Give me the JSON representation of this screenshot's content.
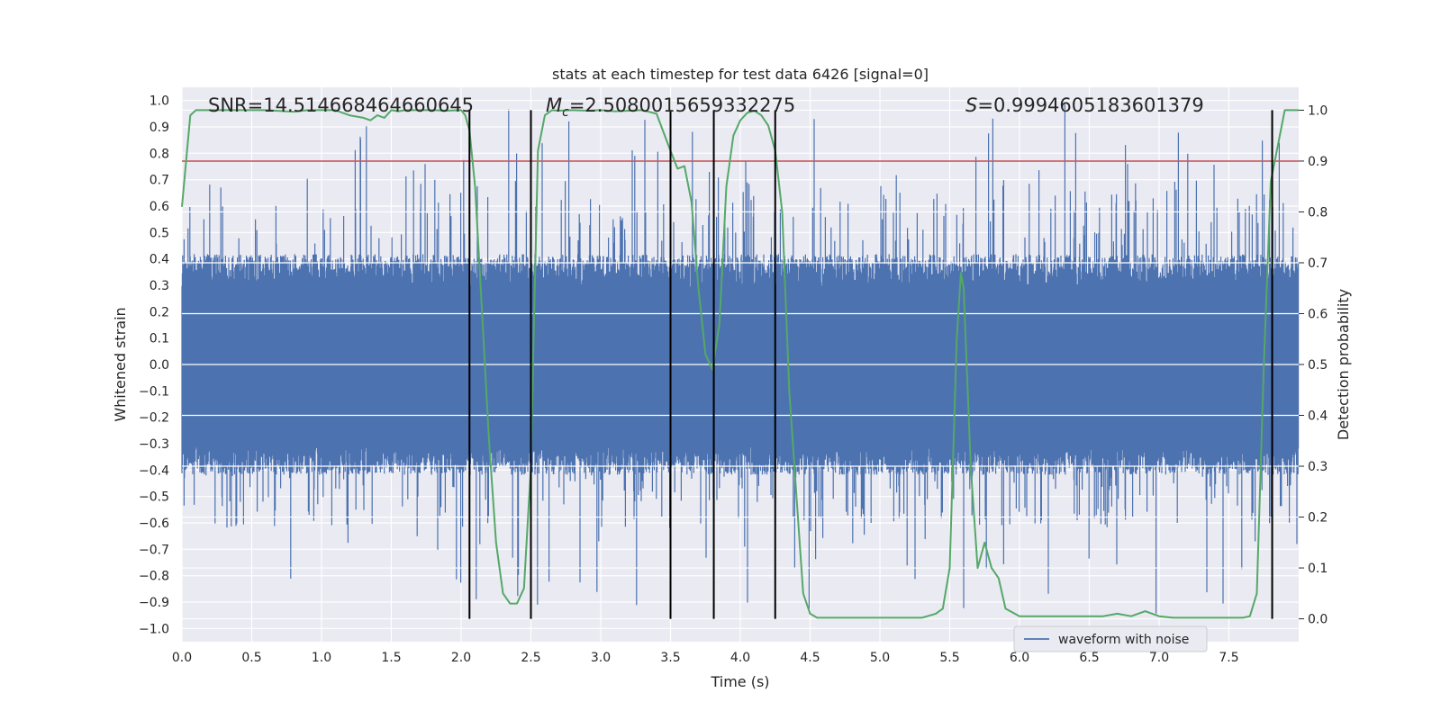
{
  "chart_data": {
    "type": "line",
    "title": "stats at each timestep for test data 6426 [signal=0]",
    "xlabel": "Time (s)",
    "ylabel": "Whitened strain",
    "ylabel_right": "Detection probability",
    "xlim": [
      0.0,
      8.0
    ],
    "ylim": [
      -1.05,
      1.05
    ],
    "ylim_right": [
      -0.045,
      1.045
    ],
    "x_ticks": [
      0.0,
      0.5,
      1.0,
      1.5,
      2.0,
      2.5,
      3.0,
      3.5,
      4.0,
      4.5,
      5.0,
      5.5,
      6.0,
      6.5,
      7.0,
      7.5
    ],
    "x_tick_labels": [
      "0.0",
      "0.5",
      "1.0",
      "1.5",
      "2.0",
      "2.5",
      "3.0",
      "3.5",
      "4.0",
      "4.5",
      "5.0",
      "5.5",
      "6.0",
      "6.5",
      "7.0",
      "7.5"
    ],
    "y_ticks": [
      -1.0,
      -0.9,
      -0.8,
      -0.7,
      -0.6,
      -0.5,
      -0.4,
      -0.3,
      -0.2,
      -0.1,
      0.0,
      0.1,
      0.2,
      0.3,
      0.4,
      0.5,
      0.6,
      0.7,
      0.8,
      0.9,
      1.0
    ],
    "y_tick_labels": [
      "−1.0",
      "−0.9",
      "−0.8",
      "−0.7",
      "−0.6",
      "−0.5",
      "−0.4",
      "−0.3",
      "−0.2",
      "−0.1",
      "0.0",
      "0.1",
      "0.2",
      "0.3",
      "0.4",
      "0.5",
      "0.6",
      "0.7",
      "0.8",
      "0.9",
      "1.0"
    ],
    "y_ticks_right": [
      0.0,
      0.1,
      0.2,
      0.3,
      0.4,
      0.5,
      0.6,
      0.7,
      0.8,
      0.9,
      1.0
    ],
    "y_tick_labels_right": [
      "0.0",
      "0.1",
      "0.2",
      "0.3",
      "0.4",
      "0.5",
      "0.6",
      "0.7",
      "0.8",
      "0.9",
      "1.0"
    ],
    "annotations": {
      "snr": "SNR=14.514668464660645",
      "mc_symbol": "M",
      "mc_sub": "c",
      "mc_value": "=2.5080015659332275",
      "s_symbol": "S",
      "s_value": "=0.9994605183601379"
    },
    "threshold_right": 0.9,
    "vertical_lines_x": [
      2.06,
      2.5,
      3.5,
      3.81,
      4.25,
      7.81
    ],
    "legend": {
      "label": "waveform with noise",
      "location": "lower-right"
    },
    "series": [
      {
        "name": "waveform with noise",
        "axis": "left",
        "noise_core": 0.38,
        "peak_max": 1.0,
        "trough_min": -0.95
      },
      {
        "name": "detection probability",
        "axis": "right",
        "x": [
          0.0,
          0.06,
          0.1,
          0.2,
          0.4,
          0.6,
          0.8,
          0.9,
          1.0,
          1.1,
          1.2,
          1.3,
          1.35,
          1.4,
          1.45,
          1.5,
          1.55,
          1.6,
          1.7,
          1.8,
          1.9,
          2.0,
          2.03,
          2.06,
          2.1,
          2.15,
          2.2,
          2.25,
          2.3,
          2.35,
          2.4,
          2.45,
          2.5,
          2.52,
          2.55,
          2.6,
          2.65,
          2.7,
          2.8,
          2.9,
          3.0,
          3.1,
          3.2,
          3.3,
          3.4,
          3.5,
          3.55,
          3.6,
          3.65,
          3.7,
          3.75,
          3.8,
          3.85,
          3.9,
          3.95,
          4.0,
          4.05,
          4.1,
          4.15,
          4.2,
          4.25,
          4.3,
          4.35,
          4.4,
          4.45,
          4.5,
          4.55,
          4.6,
          4.8,
          5.0,
          5.2,
          5.3,
          5.4,
          5.45,
          5.5,
          5.55,
          5.58,
          5.6,
          5.65,
          5.7,
          5.75,
          5.8,
          5.85,
          5.9,
          6.0,
          6.2,
          6.4,
          6.6,
          6.7,
          6.8,
          6.9,
          7.0,
          7.1,
          7.3,
          7.5,
          7.6,
          7.65,
          7.7,
          7.75,
          7.8,
          7.85,
          7.9,
          7.95,
          8.0
        ],
        "values": [
          0.81,
          0.99,
          1.0,
          1.0,
          1.0,
          1.0,
          0.997,
          1.0,
          1.0,
          1.0,
          0.99,
          0.985,
          0.98,
          0.99,
          0.985,
          1.0,
          0.998,
          1.0,
          1.0,
          1.0,
          0.999,
          1.0,
          0.99,
          0.96,
          0.85,
          0.6,
          0.35,
          0.15,
          0.05,
          0.03,
          0.03,
          0.06,
          0.3,
          0.56,
          0.92,
          0.99,
          1.0,
          0.999,
          1.0,
          0.999,
          1.0,
          0.998,
          0.999,
          1.0,
          0.993,
          0.92,
          0.885,
          0.89,
          0.82,
          0.65,
          0.52,
          0.49,
          0.58,
          0.85,
          0.95,
          0.98,
          0.995,
          0.999,
          0.99,
          0.97,
          0.92,
          0.8,
          0.45,
          0.25,
          0.05,
          0.01,
          0.002,
          0.002,
          0.002,
          0.002,
          0.002,
          0.002,
          0.01,
          0.02,
          0.1,
          0.55,
          0.68,
          0.65,
          0.3,
          0.1,
          0.15,
          0.1,
          0.08,
          0.02,
          0.005,
          0.005,
          0.005,
          0.005,
          0.01,
          0.005,
          0.015,
          0.005,
          0.002,
          0.002,
          0.002,
          0.002,
          0.005,
          0.05,
          0.5,
          0.86,
          0.93,
          1.0,
          1.0,
          1.0
        ]
      }
    ]
  },
  "colors": {
    "waveform": "#4c72b0",
    "probability": "#55a868",
    "threshold": "#c44e52",
    "vlines": "#000000",
    "plot_bg": "#eaeaf2",
    "grid": "#ffffff",
    "text": "#262626"
  }
}
